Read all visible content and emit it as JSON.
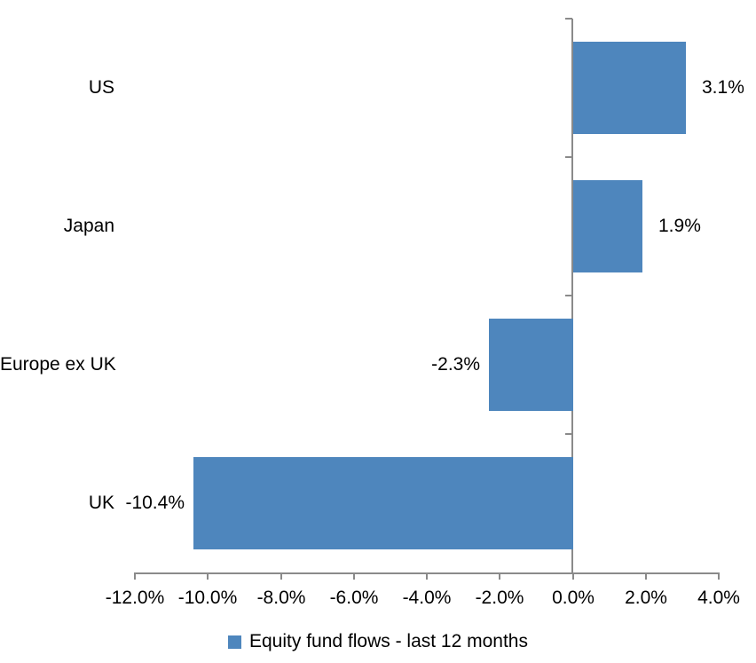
{
  "chart_data": {
    "type": "bar",
    "orientation": "horizontal",
    "title": "",
    "categories": [
      "US",
      "Japan",
      "Europe ex UK",
      "UK"
    ],
    "values": [
      3.1,
      1.9,
      -2.3,
      -10.4
    ],
    "value_labels": [
      "3.1%",
      "1.9%",
      "-2.3%",
      "-10.4%"
    ],
    "series_name": "Equity fund flows - last 12 months",
    "xlim": [
      -12,
      4
    ],
    "x_tick_values": [
      -12,
      -10,
      -8,
      -6,
      -4,
      -2,
      0,
      2,
      4
    ],
    "x_tick_labels": [
      "-12.0%",
      "-10.0%",
      "-8.0%",
      "-6.0%",
      "-4.0%",
      "-2.0%",
      "0.0%",
      "2.0%",
      "4.0%"
    ],
    "grid": false,
    "legend_position": "bottom",
    "bar_color": "#4E86BD",
    "axis_color": "#8A8A8A",
    "text_color": "#000000"
  },
  "legend": {
    "label": "Equity fund flows - last 12 months",
    "swatch_color": "#4E86BD"
  }
}
